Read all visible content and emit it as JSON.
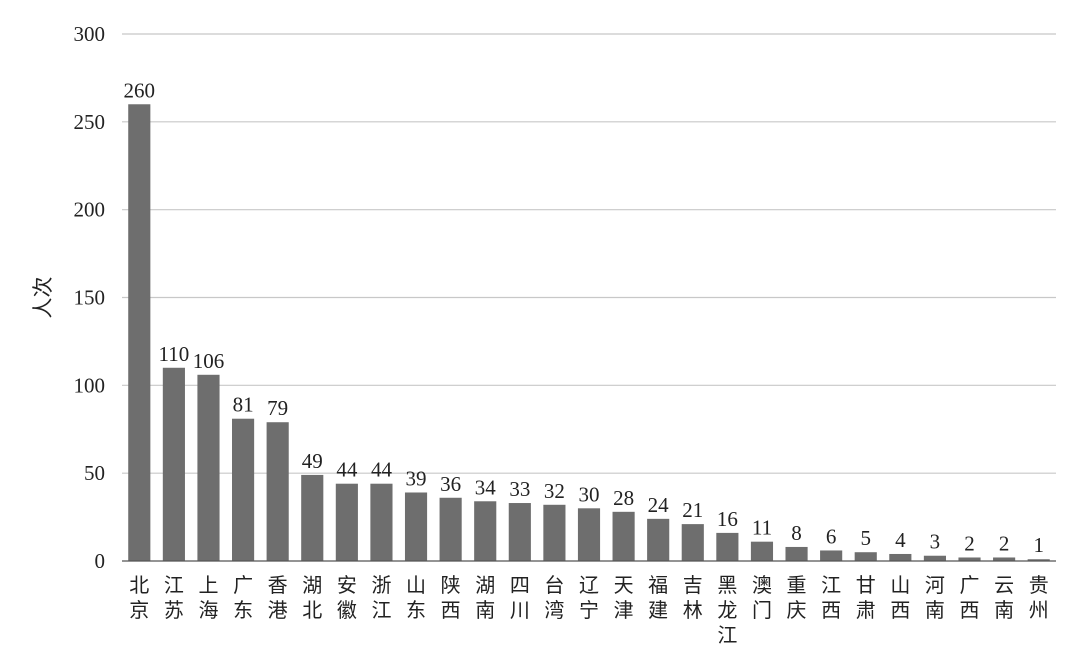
{
  "chart_data": {
    "type": "bar",
    "ylabel": "人次",
    "ylim": [
      0,
      300
    ],
    "yticks": [
      0,
      50,
      100,
      150,
      200,
      250,
      300
    ],
    "grid": true,
    "categories": [
      "北京",
      "江苏",
      "上海",
      "广东",
      "香港",
      "湖北",
      "安徽",
      "浙江",
      "山东",
      "陕西",
      "湖南",
      "四川",
      "台湾",
      "辽宁",
      "天津",
      "福建",
      "吉林",
      "黑龙江",
      "澳门",
      "重庆",
      "江西",
      "甘肃",
      "山西",
      "河南",
      "广西",
      "云南",
      "贵州"
    ],
    "values": [
      260,
      110,
      106,
      81,
      79,
      49,
      44,
      44,
      39,
      36,
      34,
      33,
      32,
      30,
      28,
      24,
      21,
      16,
      11,
      8,
      6,
      5,
      4,
      3,
      2,
      2,
      1
    ],
    "colors": {
      "bar": "#6e6e6e",
      "grid": "#c8c8c8",
      "axis": "#555555"
    }
  }
}
